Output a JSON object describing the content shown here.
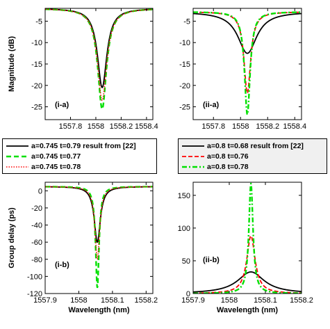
{
  "styles": {
    "black": {
      "color": "#000000",
      "dash": "",
      "width": 1.8
    },
    "green_dash": {
      "color": "#00e000",
      "dash": "7 4",
      "width": 2.4
    },
    "green_dashdot": {
      "color": "#00e000",
      "dash": "7 3 2 3",
      "width": 2.4
    },
    "red_dot": {
      "color": "#ff0000",
      "dash": "1.5 2",
      "width": 1.6
    },
    "red_dash": {
      "color": "#ff0000",
      "dash": "6 3",
      "width": 1.8
    }
  },
  "chart_data": [
    {
      "id": "i-a",
      "type": "line",
      "panel_label": "(i-a)",
      "xlabel": "",
      "ylabel": "Magnitude (dB)",
      "xlim": [
        1557.6,
        1558.45
      ],
      "ylim": [
        -28,
        -2
      ],
      "xticks": [
        1557.8,
        1558,
        1558.2,
        1558.4
      ],
      "xticklabels": [
        "1557.8",
        "1558",
        "1558.2",
        "1558.4"
      ],
      "yticks": [
        -5,
        -10,
        -15,
        -20,
        -25
      ],
      "yticklabels": [
        "-5",
        "-10",
        "-15",
        "-20",
        "-25"
      ],
      "series": [
        {
          "name": "a=0.745 t=0.79 result from [22]",
          "style": "black",
          "shape": "dip",
          "center": 1558.05,
          "base": -2,
          "depth": 18.5,
          "width": 0.045
        },
        {
          "name": "a=0.745 t=0.77",
          "style": "green_dash",
          "shape": "dip",
          "center": 1558.05,
          "base": -2,
          "depth": 23.5,
          "width": 0.042
        },
        {
          "name": "a=0.745 t=0.78",
          "style": "red_dot",
          "shape": "dip",
          "center": 1558.05,
          "base": -2,
          "depth": 21.5,
          "width": 0.044
        }
      ]
    },
    {
      "id": "ii-a",
      "type": "line",
      "panel_label": "(ii-a)",
      "xlabel": "",
      "ylabel": "",
      "xlim": [
        1557.65,
        1558.45
      ],
      "ylim": [
        -28,
        -2
      ],
      "xticks": [
        1557.8,
        1558,
        1558.2,
        1558.4
      ],
      "xticklabels": [
        "1557.8",
        "1558",
        "1558.2",
        "1558.4"
      ],
      "yticks": [
        -5,
        -10,
        -15,
        -20,
        -25
      ],
      "yticklabels": [
        "-5",
        "-10",
        "-15",
        "-20",
        "-25"
      ],
      "series": [
        {
          "name": "a=0.8 t=0.68 result from [22]",
          "style": "black",
          "shape": "dip",
          "center": 1558.05,
          "base": -2.8,
          "depth": 9.7,
          "width": 0.085
        },
        {
          "name": "a=0.8 t=0.76",
          "style": "red_dash",
          "shape": "dip",
          "center": 1558.05,
          "base": -2.8,
          "depth": 19.0,
          "width": 0.03
        },
        {
          "name": "a=0.8 t=0.78",
          "style": "green_dashdot",
          "shape": "dip",
          "center": 1558.05,
          "base": -2.8,
          "depth": 24.0,
          "width": 0.025
        }
      ]
    },
    {
      "id": "i-b",
      "type": "line",
      "panel_label": "(i-b)",
      "xlabel": "Wavelength (nm)",
      "ylabel": "Group delay (ps)",
      "xlim": [
        1557.9,
        1558.22
      ],
      "ylim": [
        -120,
        10
      ],
      "xticks": [
        1557.9,
        1558,
        1558.1,
        1558.2
      ],
      "xticklabels": [
        "1557.9",
        "1558",
        "1558.1",
        "1558.2"
      ],
      "yticks": [
        0,
        -20,
        -40,
        -60,
        -80,
        -100,
        -120
      ],
      "yticklabels": [
        "0",
        "-20",
        "-40",
        "-60",
        "-80",
        "-100",
        "-120"
      ],
      "series": [
        {
          "name": "a=0.745 t=0.79 result from [22]",
          "style": "black",
          "shape": "dip",
          "center": 1558.055,
          "base": 5,
          "depth": 65,
          "width": 0.011
        },
        {
          "name": "a=0.745 t=0.77",
          "style": "green_dash",
          "shape": "dip",
          "center": 1558.055,
          "base": 5,
          "depth": 118,
          "width": 0.0062
        },
        {
          "name": "a=0.745 t=0.78",
          "style": "red_dot",
          "shape": "dip",
          "center": 1558.055,
          "base": 5,
          "depth": 85,
          "width": 0.0085
        }
      ]
    },
    {
      "id": "ii-b",
      "type": "line",
      "panel_label": "(ii-b)",
      "xlabel": "Wavelength (nm)",
      "ylabel": "",
      "xlim": [
        1557.9,
        1558.2
      ],
      "ylim": [
        0,
        170
      ],
      "xticks": [
        1557.9,
        1558,
        1558.1,
        1558.2
      ],
      "xticklabels": [
        "1557.9",
        "1558",
        "1558.1",
        "1558.2"
      ],
      "yticks": [
        0,
        50,
        100,
        150
      ],
      "yticklabels": [
        "0",
        "50",
        "100",
        "150"
      ],
      "series": [
        {
          "name": "a=0.8 t=0.68 result from [22]",
          "style": "black",
          "shape": "peak",
          "center": 1558.06,
          "base": 0,
          "depth": 33,
          "width": 0.045
        },
        {
          "name": "a=0.8 t=0.76",
          "style": "red_dash",
          "shape": "peak",
          "center": 1558.06,
          "base": 0,
          "depth": 88,
          "width": 0.014
        },
        {
          "name": "a=0.8 t=0.78",
          "style": "green_dashdot",
          "shape": "peak",
          "center": 1558.06,
          "base": 0,
          "depth": 168,
          "width": 0.007
        }
      ]
    }
  ],
  "legends": [
    {
      "entries": [
        {
          "label": "a=0.745 t=0.79 result from [22]",
          "style": "black"
        },
        {
          "label": "a=0.745 t=0.77",
          "style": "green_dash"
        },
        {
          "label": "a=0.745 t=0.78",
          "style": "red_dot"
        }
      ]
    },
    {
      "entries": [
        {
          "label": "a=0.8 t=0.68 result from [22]",
          "style": "black"
        },
        {
          "label": "a=0.8 t=0.76",
          "style": "red_dash"
        },
        {
          "label": "a=0.8 t=0.78",
          "style": "green_dashdot"
        }
      ]
    }
  ]
}
